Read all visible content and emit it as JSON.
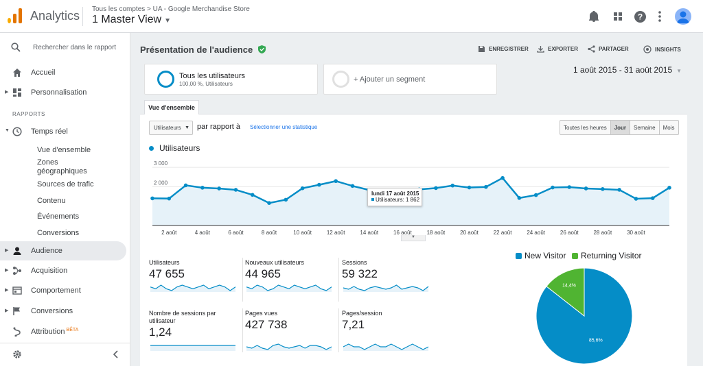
{
  "topbar": {
    "app_name": "Analytics",
    "breadcrumb": "Tous les comptes > UA - Google Merchandise Store",
    "view_name": "1 Master View",
    "colors": {
      "logo": [
        "#f9ab00",
        "#e37400",
        "#e37400"
      ],
      "avatar": "#8ab4f8"
    }
  },
  "sidebar": {
    "search_placeholder": "Rechercher dans le rapport",
    "top_items": [
      {
        "label": "Accueil",
        "icon": "home-icon"
      },
      {
        "label": "Personnalisation",
        "icon": "dashboard-icon"
      }
    ],
    "section_label": "RAPPORTS",
    "realtime": {
      "label": "Temps réel",
      "icon": "clock-icon"
    },
    "realtime_subitems": [
      "Vue d'ensemble",
      "Zones géographiques",
      "Sources de trafic",
      "Contenu",
      "Événements",
      "Conversions"
    ],
    "report_items": [
      {
        "label": "Audience",
        "icon": "person-icon"
      },
      {
        "label": "Acquisition",
        "icon": "acquisition-icon"
      },
      {
        "label": "Comportement",
        "icon": "behavior-icon"
      },
      {
        "label": "Conversions",
        "icon": "flag-icon"
      },
      {
        "label": "Attribution",
        "icon": "attribution-icon",
        "badge": "BÊTA"
      }
    ]
  },
  "header": {
    "title": "Présentation de l'audience",
    "actions": [
      "ENREGISTRER",
      "EXPORTER",
      "PARTAGER",
      "INSIGHTS"
    ]
  },
  "segments": {
    "active_name": "Tous les utilisateurs",
    "active_sub": "100,00 %, Utilisateurs",
    "add_label": "+ Ajouter un segment"
  },
  "date_range": "1 août 2015 - 31 août 2015",
  "tab_label": "Vue d'ensemble",
  "controls": {
    "metric": "Utilisateurs",
    "vs_text": "par rapport à",
    "pick_link": "Sélectionner une statistique",
    "periods": [
      "Toutes les heures",
      "Jour",
      "Semaine",
      "Mois"
    ],
    "active_period": "Jour"
  },
  "chart_data": {
    "type": "area",
    "series_name": "Utilisateurs",
    "color": "#058dc7",
    "y_ticks": [
      "3 000",
      "2 000",
      "1 000"
    ],
    "ylim": [
      0,
      3500
    ],
    "x_ticks": [
      "2 août",
      "4 août",
      "6 août",
      "8 août",
      "10 août",
      "12 août",
      "14 août",
      "16 août",
      "18 août",
      "20 août",
      "22 août",
      "24 août",
      "26 août",
      "28 août",
      "30 août"
    ],
    "values": [
      1400,
      1390,
      2070,
      1950,
      1910,
      1840,
      1580,
      1160,
      1330,
      1920,
      2100,
      2290,
      2040,
      1830,
      1450,
      1290,
      1862,
      1930,
      2060,
      1960,
      1990,
      2450,
      1420,
      1570,
      1960,
      1980,
      1910,
      1880,
      1840,
      1380,
      1410,
      1950
    ],
    "tooltip": {
      "date": "lundi 17 août 2015",
      "label": "Utilisateurs: 1 862"
    }
  },
  "metrics": [
    {
      "label": "Utilisateurs",
      "value": "47 655",
      "spark": [
        5,
        4,
        6,
        4,
        3,
        5,
        6,
        5,
        4,
        5,
        6,
        4,
        5,
        6,
        5,
        3,
        5
      ]
    },
    {
      "label": "Nouveaux utilisateurs",
      "value": "44 965",
      "spark": [
        5,
        4,
        6,
        5,
        3,
        4,
        6,
        5,
        4,
        6,
        5,
        4,
        5,
        6,
        4,
        3,
        5
      ]
    },
    {
      "label": "Sessions",
      "value": "59 322",
      "spark": [
        5,
        4,
        6,
        4,
        3,
        5,
        6,
        5,
        4,
        5,
        7,
        4,
        5,
        6,
        5,
        3,
        6
      ]
    },
    {
      "label": "Nombre de sessions par utilisateur",
      "value": "1,24",
      "spark": [
        5,
        5,
        5,
        5,
        5,
        5,
        5,
        5,
        5,
        5,
        5,
        5,
        5,
        5,
        5,
        5,
        5
      ]
    },
    {
      "label": "Pages vues",
      "value": "427 738",
      "spark": [
        5,
        4,
        6,
        4,
        3,
        6,
        7,
        5,
        4,
        5,
        6,
        4,
        6,
        6,
        5,
        3,
        5
      ]
    },
    {
      "label": "Pages/session",
      "value": "7,21",
      "spark": [
        5,
        6,
        5,
        5,
        4,
        5,
        6,
        5,
        5,
        6,
        5,
        4,
        5,
        6,
        5,
        4,
        5
      ]
    }
  ],
  "pie": {
    "legend": [
      {
        "name": "New Visitor",
        "color": "#058dc7"
      },
      {
        "name": "Returning Visitor",
        "color": "#50b432"
      }
    ],
    "slices": [
      {
        "name": "New Visitor",
        "value": 85.6,
        "label": "85,6%"
      },
      {
        "name": "Returning Visitor",
        "value": 14.4,
        "label": "14,4%"
      }
    ]
  }
}
